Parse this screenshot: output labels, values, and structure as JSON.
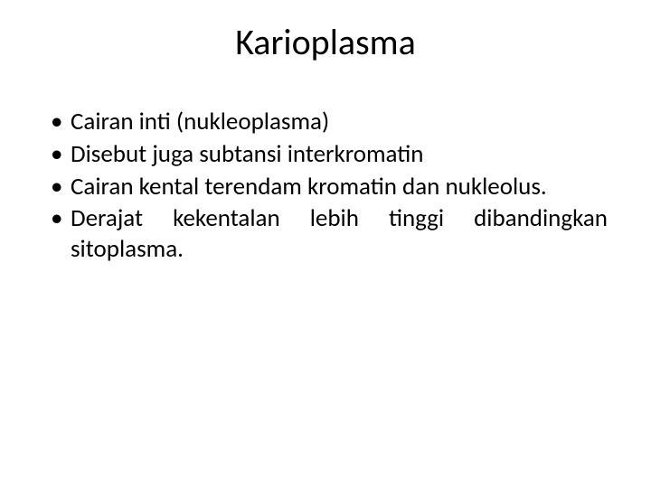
{
  "title": {
    "text": "Karioplasma",
    "fontsize": 40,
    "color": "#000000"
  },
  "body": {
    "fontsize": 27,
    "lineheight": 1.25,
    "color": "#000000",
    "items": [
      {
        "text": "Cairan inti (nukleoplasma)",
        "justify": false
      },
      {
        "text": "Disebut juga subtansi interkromatin",
        "justify": false
      },
      {
        "text": "Cairan kental terendam kromatin dan nukleolus.",
        "justify": true
      },
      {
        "text": "Derajat kekentalan lebih tinggi dibandingkan sitoplasma.",
        "justify": true
      }
    ]
  },
  "background_color": "#ffffff"
}
